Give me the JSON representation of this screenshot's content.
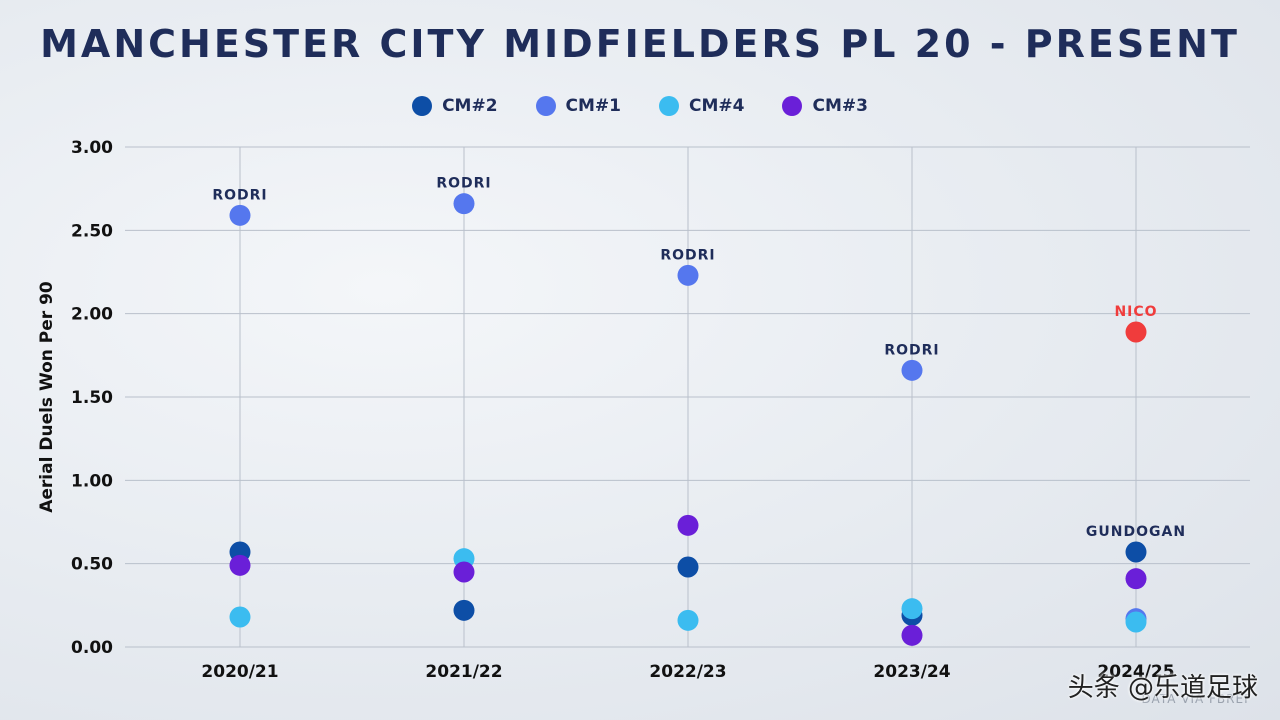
{
  "chart_data": {
    "type": "scatter",
    "title": "MANCHESTER CITY MIDFIELDERS PL 20 - PRESENT",
    "ylabel": "Aerial Duels Won Per 90",
    "xlabel": "",
    "categories": [
      "2020/21",
      "2021/22",
      "2022/23",
      "2023/24",
      "2024/25"
    ],
    "ylim": [
      0,
      3
    ],
    "yticks": [
      "0.00",
      "0.50",
      "1.00",
      "1.50",
      "2.00",
      "2.50",
      "3.00"
    ],
    "grid": true,
    "legend_position": "top-center",
    "series": [
      {
        "name": "CM#2",
        "color": "#0d4ea6",
        "values": [
          0.57,
          0.22,
          0.48,
          0.19,
          0.57
        ],
        "labels": [
          "",
          "",
          "",
          "",
          "GUNDOGAN"
        ]
      },
      {
        "name": "CM#1",
        "color": "#5577ee",
        "values": [
          2.59,
          2.66,
          2.23,
          1.66,
          0.17
        ],
        "labels": [
          "RODRI",
          "RODRI",
          "RODRI",
          "RODRI",
          ""
        ]
      },
      {
        "name": "CM#4",
        "color": "#3bbcf0",
        "values": [
          0.18,
          0.53,
          0.16,
          0.23,
          0.15
        ],
        "labels": [
          "",
          "",
          "",
          "",
          ""
        ]
      },
      {
        "name": "CM#3",
        "color": "#6a1fd8",
        "values": [
          0.49,
          0.45,
          0.73,
          0.07,
          0.41
        ],
        "labels": [
          "",
          "",
          "",
          "",
          ""
        ]
      }
    ],
    "highlight": {
      "label": "NICO",
      "category": "2024/25",
      "value": 1.89,
      "color": "#f03c3c"
    }
  },
  "source": "DATA VIA FBREF",
  "watermark": "头条 @乐道足球"
}
